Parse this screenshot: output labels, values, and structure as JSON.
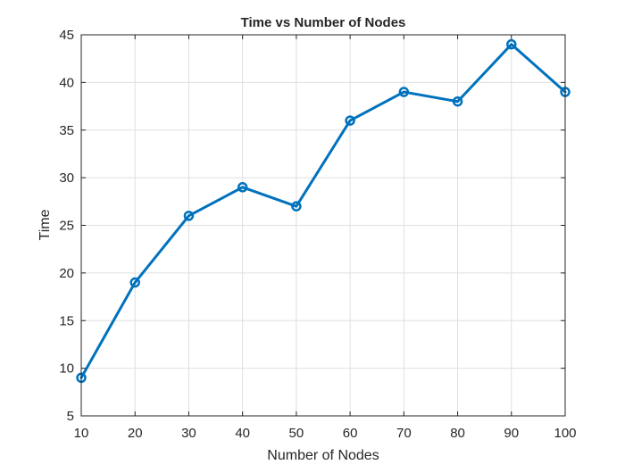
{
  "chart_data": {
    "type": "line",
    "title": "Time vs Number of Nodes",
    "xlabel": "Number of Nodes",
    "ylabel": "Time",
    "xlim": [
      10,
      100
    ],
    "ylim": [
      5,
      45
    ],
    "x_ticks": [
      10,
      20,
      30,
      40,
      50,
      60,
      70,
      80,
      90,
      100
    ],
    "y_ticks": [
      5,
      10,
      15,
      20,
      25,
      30,
      35,
      40,
      45
    ],
    "grid": true,
    "legend": "none",
    "series": [
      {
        "x": [
          10,
          20,
          30,
          40,
          50,
          60,
          70,
          80,
          90,
          100
        ],
        "y": [
          9,
          19,
          26,
          29,
          27,
          36,
          39,
          38,
          44,
          39
        ],
        "marker": "circle",
        "color": "#0072BD"
      }
    ]
  }
}
